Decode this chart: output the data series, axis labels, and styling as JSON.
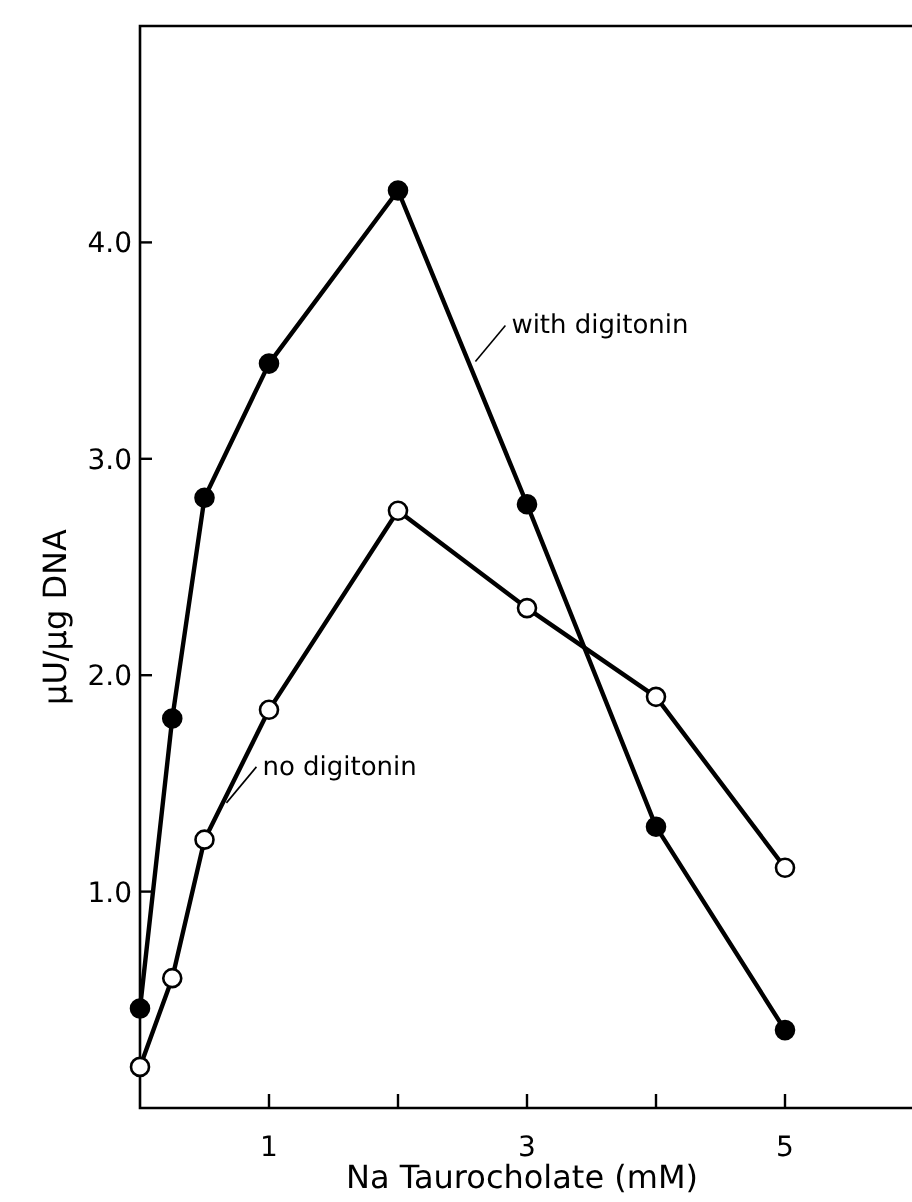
{
  "chart_data": {
    "type": "line",
    "xlabel": "Na Taurocholate (mM)",
    "ylabel": "μU/μg DNA",
    "x": [
      0,
      0.25,
      0.5,
      1,
      2,
      3,
      4,
      5
    ],
    "series": [
      {
        "color": "#000000",
        "values": [
          0.46,
          1.8,
          2.82,
          3.44,
          4.24,
          2.79,
          1.3,
          0.36
        ]
      },
      {
        "color": "#000000",
        "colors": [
          "#ffffff",
          "#ffffff",
          "#ffffff",
          "#ffffff",
          "#ffffff",
          "#ffffff",
          "#ffffff",
          "#ffffff"
        ],
        "values": [
          0.19,
          0.6,
          1.24,
          1.84,
          2.76,
          2.31,
          1.9,
          1.11
        ]
      }
    ],
    "xlim": [
      0,
      6
    ],
    "xticks": [
      1,
      {
        "value": 2,
        "label": null
      },
      3,
      {
        "value": 4,
        "label": null
      },
      5
    ],
    "ylim": [
      0,
      5
    ],
    "yticks": [
      {
        "value": 1,
        "label": "1.0"
      },
      {
        "value": 2,
        "label": "2.0"
      },
      {
        "value": 3,
        "label": "3.0"
      },
      {
        "value": 4,
        "label": "4.0"
      }
    ],
    "annotations": [
      {
        "text": "with digitonin",
        "x": 2.6,
        "y": 3.45
      },
      {
        "text": "no digitonin",
        "x": 0.67,
        "y": 1.41
      }
    ],
    "grid": false,
    "marker": "circle",
    "line_style": "solid"
  }
}
